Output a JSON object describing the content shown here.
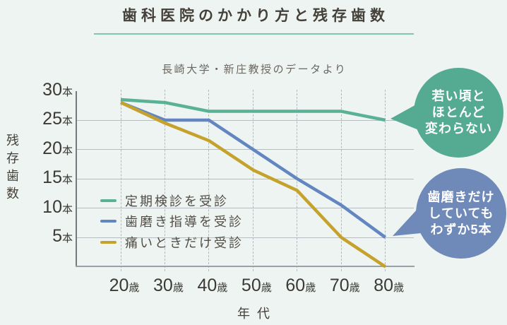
{
  "title": "歯科医院のかかり方と残存歯数",
  "subtitle": "長崎大学・新庄教授のデータより",
  "colors": {
    "background": "#edf4f1",
    "title_text": "#45403a",
    "title_underline": "#7fc5b0",
    "subtitle_text": "#6b6660",
    "axis_tick_text": "#3d3934",
    "legend_text": "#524d47",
    "horizontal_grid": "#b7bcc0",
    "vertical_grid_dashed": "#b3b9be",
    "y_axis_line": "#75797e",
    "x_axis_line": "#9aa0a6",
    "bubble_text": "#ffffff"
  },
  "chart_data": {
    "type": "line",
    "title": "歯科医院のかかり方と残存歯数",
    "source_note": "長崎大学・新庄教授のデータより",
    "xlabel": "年代",
    "ylabel": "残存歯数",
    "x": [
      20,
      30,
      40,
      50,
      60,
      70,
      80
    ],
    "x_tick_unit": "歳",
    "y_ticks": [
      30,
      25,
      20,
      15,
      10,
      5
    ],
    "y_tick_unit": "本",
    "ylim": [
      0,
      30
    ],
    "grid": "horizontal solid, vertical dashed",
    "legend_position": "inside lower-left",
    "series": [
      {
        "name": "定期検診を受診",
        "color": "#59b295",
        "values": [
          28.5,
          28,
          26.5,
          26.5,
          26.5,
          26.5,
          25
        ]
      },
      {
        "name": "歯磨き指導を受診",
        "color": "#6386c2",
        "values": [
          28,
          25,
          25,
          20,
          15,
          10.5,
          5
        ]
      },
      {
        "name": "痛いときだけ受診",
        "color": "#c5a22b",
        "values": [
          28,
          24.5,
          21.5,
          16.5,
          13,
          5,
          0
        ]
      }
    ]
  },
  "annotations": [
    {
      "lines": [
        "若い頃と",
        "ほとんど",
        "変わらない"
      ],
      "color": "#55ab91"
    },
    {
      "lines": [
        "歯磨きだけ",
        "していても",
        "わずか5本"
      ],
      "color": "#6f89b9"
    }
  ]
}
